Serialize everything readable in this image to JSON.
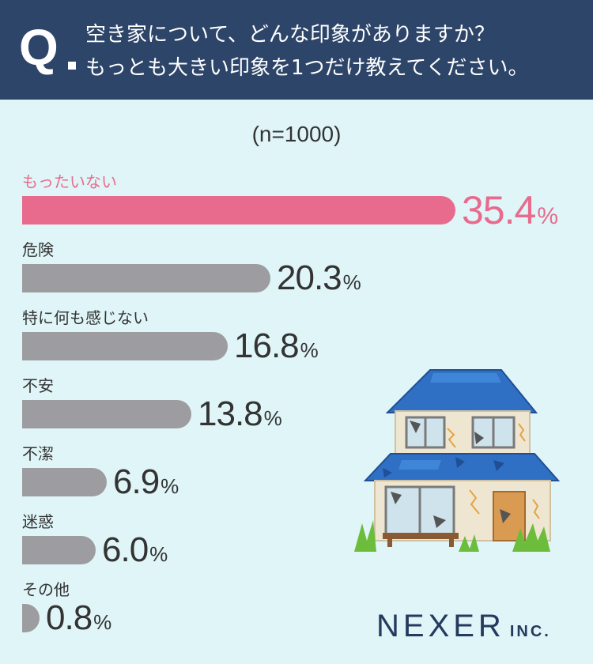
{
  "question": {
    "mark": "Q",
    "line1": "空き家について、どんな印象がありますか？",
    "line2": "もっとも大きい印象を1つだけ教えてください。"
  },
  "sample_size": "(n=1000)",
  "logo": {
    "main": "NEXER",
    "sub": "INC."
  },
  "colors": {
    "highlight": "#e86b8d",
    "bar": "#9d9da1",
    "header": "#2d4569",
    "background": "#e0f5f8"
  },
  "chart_data": {
    "type": "bar",
    "orientation": "horizontal",
    "unit": "%",
    "categories": [
      "もったいない",
      "危険",
      "特に何も感じない",
      "不安",
      "不潔",
      "迷惑",
      "その他"
    ],
    "values": [
      35.4,
      20.3,
      16.8,
      13.8,
      6.9,
      6.0,
      0.8
    ],
    "value_labels": [
      "35.4",
      "20.3",
      "16.8",
      "13.8",
      "6.9",
      "6.0",
      "0.8"
    ],
    "highlight_index": 0
  }
}
